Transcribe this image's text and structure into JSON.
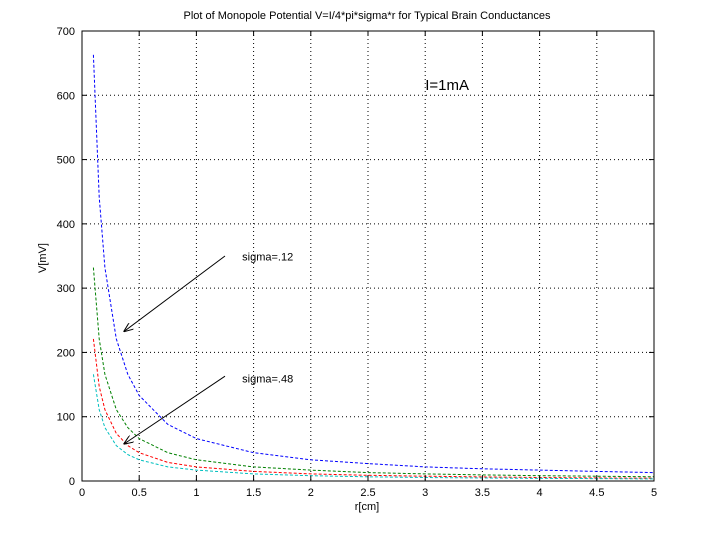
{
  "chart_data": {
    "type": "line",
    "title": "Plot of Monopole Potential V=I/4*pi*sigma*r for Typical Brain Conductances",
    "xlabel": "r[cm]",
    "ylabel": "V[mV]",
    "xlim": [
      0,
      5
    ],
    "ylim": [
      0,
      700
    ],
    "xticks": [
      0,
      0.5,
      1,
      1.5,
      2,
      2.5,
      3,
      3.5,
      4,
      4.5,
      5
    ],
    "xtick_labels": [
      "0",
      "0.5",
      "1",
      "1.5",
      "2",
      "2.5",
      "3",
      "3.5",
      "4",
      "4.5",
      "5"
    ],
    "yticks": [
      0,
      100,
      200,
      300,
      400,
      500,
      600,
      700
    ],
    "ytick_labels": [
      "0",
      "100",
      "200",
      "300",
      "400",
      "500",
      "600",
      "700"
    ],
    "grid": true,
    "x": [
      0.1,
      0.15,
      0.2,
      0.3,
      0.4,
      0.5,
      0.75,
      1,
      1.5,
      2,
      2.5,
      3,
      3.5,
      4,
      4.5,
      5
    ],
    "series": [
      {
        "color": "#0000ff",
        "values": [
          663,
          442,
          332,
          221,
          166,
          133,
          88,
          66,
          44,
          33,
          27,
          22,
          19,
          17,
          15,
          13
        ]
      },
      {
        "color": "#008000",
        "values": [
          332,
          221,
          166,
          111,
          83,
          66,
          44,
          33,
          22,
          17,
          13,
          11,
          9.5,
          8.3,
          7.4,
          6.6
        ]
      },
      {
        "color": "#ff0000",
        "values": [
          221,
          147,
          111,
          74,
          55,
          44,
          29,
          22,
          15,
          11,
          8.8,
          7.4,
          6.3,
          5.5,
          4.9,
          4.4
        ]
      },
      {
        "color": "#00bfbf",
        "values": [
          166,
          111,
          83,
          55,
          41,
          33,
          22,
          17,
          11,
          8.3,
          6.6,
          5.5,
          4.7,
          4.1,
          3.7,
          3.3
        ]
      }
    ],
    "annotations": [
      {
        "text": "sigma=.12",
        "x": 1.4,
        "y": 343,
        "arrow_from": [
          1.25,
          350
        ],
        "arrow_to": [
          0.37,
          233
        ]
      },
      {
        "text": "sigma=.48",
        "x": 1.4,
        "y": 153,
        "arrow_from": [
          1.25,
          163
        ],
        "arrow_to": [
          0.37,
          58
        ]
      },
      {
        "text": "I=1mA",
        "x": 3.0,
        "y": 608
      }
    ]
  }
}
